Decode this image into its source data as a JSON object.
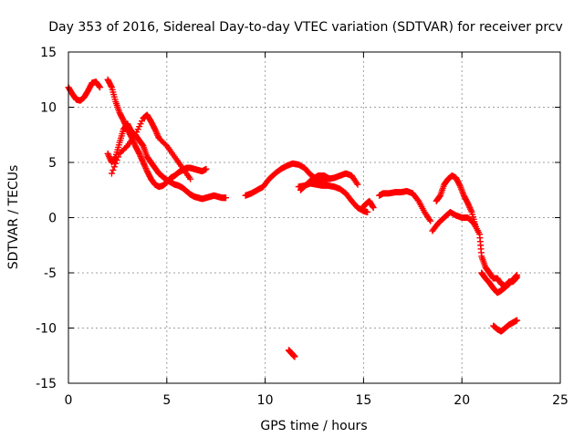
{
  "chart_data": {
    "type": "scatter",
    "title": "Day 353 of 2016, Sidereal Day-to-day VTEC variation (SDTVAR) for receiver prcv",
    "xlabel": "GPS time / hours",
    "ylabel": "SDTVAR / TECUs",
    "xlim": [
      0,
      25
    ],
    "ylim": [
      -15,
      15
    ],
    "xticks": [
      0,
      5,
      10,
      15,
      20,
      25
    ],
    "yticks": [
      -15,
      -10,
      -5,
      0,
      5,
      10,
      15
    ],
    "xtick_labels": [
      "0",
      "5",
      "10",
      "15",
      "20",
      "25"
    ],
    "ytick_labels": [
      "-15",
      "-10",
      "-5",
      "0",
      "5",
      "10",
      "15"
    ],
    "grid": true,
    "marker": "plus",
    "color": "#ff0000",
    "series": [
      {
        "name": "seg1",
        "x": [
          0.0,
          0.2,
          0.4,
          0.6,
          0.8,
          1.0,
          1.2,
          1.4,
          1.6
        ],
        "y": [
          11.8,
          11.2,
          10.7,
          10.6,
          10.9,
          11.5,
          12.2,
          12.3,
          11.8
        ]
      },
      {
        "name": "seg2",
        "x": [
          2.0,
          2.2,
          2.4,
          2.6,
          2.8,
          3.0,
          3.2,
          3.4,
          3.6,
          3.8,
          4.0,
          4.2,
          4.4,
          4.6,
          4.8,
          5.0,
          5.2,
          5.4,
          5.6,
          5.8,
          6.0,
          6.2,
          6.4,
          6.6,
          6.8,
          7.0
        ],
        "y": [
          12.5,
          11.8,
          10.5,
          9.5,
          8.8,
          8.0,
          7.3,
          6.5,
          5.8,
          5.0,
          4.2,
          3.5,
          3.0,
          2.8,
          2.9,
          3.2,
          3.6,
          3.8,
          4.1,
          4.3,
          4.5,
          4.5,
          4.4,
          4.3,
          4.2,
          4.4
        ]
      },
      {
        "name": "seg3",
        "x": [
          2.0,
          2.2,
          2.4,
          2.6,
          2.8,
          3.0,
          3.2,
          3.4,
          3.6,
          3.8,
          4.0,
          4.2,
          4.4,
          4.6,
          4.8,
          5.0,
          5.2,
          5.4,
          5.6,
          5.8,
          6.0,
          6.2,
          6.4,
          6.6,
          6.8,
          7.0,
          7.2,
          7.4,
          7.6,
          7.8,
          8.0
        ],
        "y": [
          5.8,
          5.0,
          5.5,
          6.8,
          8.0,
          8.5,
          7.8,
          7.5,
          7.0,
          6.5,
          5.5,
          5.0,
          4.5,
          4.0,
          3.7,
          3.4,
          3.2,
          3.0,
          2.9,
          2.7,
          2.4,
          2.1,
          1.9,
          1.8,
          1.7,
          1.8,
          1.9,
          2.0,
          1.9,
          1.8,
          1.8
        ]
      },
      {
        "name": "seg4",
        "x": [
          2.2,
          2.6,
          3.0,
          3.4,
          3.8,
          4.0,
          4.2,
          4.4,
          4.6,
          5.0,
          5.4,
          5.8,
          6.2
        ],
        "y": [
          4.0,
          5.8,
          6.5,
          7.5,
          9.0,
          9.3,
          8.7,
          8.0,
          7.2,
          6.5,
          5.5,
          4.5,
          3.5
        ]
      },
      {
        "name": "seg5",
        "x": [
          9.0,
          9.3,
          9.6,
          9.9,
          10.2,
          10.5,
          10.8,
          11.1,
          11.4,
          11.7,
          12.0,
          12.3,
          12.6,
          12.9,
          13.2,
          13.5,
          13.8,
          14.1,
          14.4,
          14.7
        ],
        "y": [
          2.0,
          2.2,
          2.5,
          2.8,
          3.5,
          4.0,
          4.4,
          4.7,
          4.9,
          4.8,
          4.5,
          3.9,
          3.5,
          3.4,
          3.5,
          3.6,
          3.8,
          4.0,
          3.8,
          3.0
        ]
      },
      {
        "name": "seg6",
        "x": [
          11.7,
          12.0,
          12.3,
          12.6,
          12.9,
          13.2,
          13.5,
          13.8,
          14.1,
          14.4,
          14.7,
          15.0,
          15.2
        ],
        "y": [
          2.8,
          2.9,
          3.1,
          3.0,
          2.9,
          2.9,
          2.8,
          2.6,
          2.2,
          1.5,
          0.9,
          0.6,
          0.5
        ]
      },
      {
        "name": "seg7",
        "x": [
          11.8,
          12.1,
          12.4,
          12.7,
          13.0,
          13.3
        ],
        "y": [
          2.5,
          3.0,
          3.5,
          3.8,
          3.8,
          3.5
        ]
      },
      {
        "name": "seg8",
        "x": [
          14.9,
          15.1,
          15.3,
          15.5
        ],
        "y": [
          0.8,
          1.2,
          1.5,
          0.9
        ]
      },
      {
        "name": "seg9",
        "x": [
          15.8,
          16.0,
          16.3,
          16.6,
          16.9,
          17.2,
          17.5,
          17.8,
          18.1,
          18.4
        ],
        "y": [
          2.0,
          2.2,
          2.2,
          2.3,
          2.3,
          2.4,
          2.2,
          1.5,
          0.5,
          -0.3
        ]
      },
      {
        "name": "seg10",
        "x": [
          18.5,
          18.8,
          19.1,
          19.4,
          19.7,
          20.0,
          20.3,
          20.6,
          20.9,
          21.0,
          21.2,
          21.4,
          21.6,
          21.8,
          22.0,
          22.2,
          22.4,
          22.6,
          22.8
        ],
        "y": [
          -1.2,
          -0.5,
          0.0,
          0.5,
          0.2,
          0.0,
          0.0,
          -0.5,
          -1.5,
          -3.5,
          -4.5,
          -5.0,
          -5.5,
          -5.5,
          -6.0,
          -6.2,
          -5.8,
          -5.8,
          -5.4
        ]
      },
      {
        "name": "seg11",
        "x": [
          18.7,
          18.9,
          19.1,
          19.3,
          19.5,
          19.7,
          19.9,
          20.1,
          20.3,
          20.5,
          20.7
        ],
        "y": [
          1.5,
          2.0,
          3.0,
          3.5,
          3.8,
          3.6,
          2.9,
          2.0,
          1.3,
          0.5,
          -0.8
        ]
      },
      {
        "name": "seg12",
        "x": [
          21.0,
          21.2,
          21.4,
          21.6,
          21.8,
          22.0,
          22.2,
          22.4,
          22.6,
          22.8
        ],
        "y": [
          -5.0,
          -5.5,
          -5.9,
          -6.4,
          -6.8,
          -6.6,
          -6.3,
          -6.0,
          -5.6,
          -5.2
        ]
      },
      {
        "name": "seg13",
        "x": [
          21.6,
          21.8,
          22.0,
          22.2,
          22.4,
          22.6,
          22.8
        ],
        "y": [
          -9.8,
          -10.1,
          -10.3,
          -10.0,
          -9.7,
          -9.5,
          -9.3
        ]
      },
      {
        "name": "seg14",
        "x": [
          11.2,
          11.3,
          11.4,
          11.5
        ],
        "y": [
          -12.0,
          -12.2,
          -12.4,
          -12.6
        ]
      }
    ]
  }
}
